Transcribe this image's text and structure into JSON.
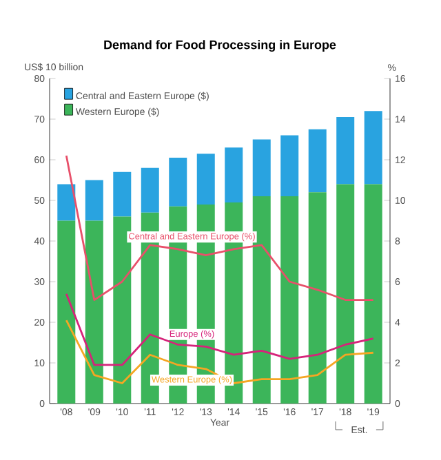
{
  "chart_data": {
    "type": "bar",
    "stacked": true,
    "title": "Demand for Food Processing in Europe",
    "ylabel": "US$ 10 billion",
    "y2label": "%",
    "xlabel": "Year",
    "categories": [
      "'08",
      "'09",
      "'10",
      "'11",
      "'12",
      "'13",
      "'14",
      "'15",
      "'16",
      "'17",
      "'18",
      "'19"
    ],
    "series": [
      {
        "name": "Western Europe ($)",
        "color": "#3cb55a",
        "values": [
          45,
          45,
          46,
          47,
          48.5,
          49,
          49.5,
          51,
          51,
          52,
          54,
          54
        ]
      },
      {
        "name": "Central and Eastern Europe ($)",
        "color": "#29a3e0",
        "values": [
          9,
          10,
          11,
          11,
          12,
          12.5,
          13.5,
          14,
          15,
          15.5,
          16.5,
          18
        ]
      },
      {
        "name": "Central and Eastern Europe (%)",
        "type": "line",
        "axis": "y2",
        "color": "#e8506a",
        "values": [
          12.2,
          5.1,
          6.0,
          7.8,
          7.6,
          7.3,
          7.6,
          7.8,
          6.0,
          5.6,
          5.1,
          5.1
        ]
      },
      {
        "name": "Europe (%)",
        "type": "line",
        "axis": "y2",
        "color": "#d6237a",
        "values": [
          5.4,
          1.9,
          1.9,
          3.4,
          2.9,
          2.8,
          2.4,
          2.6,
          2.2,
          2.4,
          2.9,
          3.2
        ]
      },
      {
        "name": "Western Europe (%)",
        "type": "line",
        "axis": "y2",
        "color": "#f5a623",
        "values": [
          4.1,
          1.4,
          1.0,
          2.4,
          1.9,
          1.7,
          1.0,
          1.2,
          1.2,
          1.4,
          2.4,
          2.5
        ]
      }
    ],
    "ylim": [
      0,
      80
    ],
    "yticks": [
      0,
      10,
      20,
      30,
      40,
      50,
      60,
      70,
      80
    ],
    "y2lim": [
      0,
      16
    ],
    "y2ticks": [
      0,
      2,
      4,
      6,
      8,
      10,
      12,
      14,
      16
    ],
    "legend": "top left",
    "annotations": [
      "Est."
    ]
  }
}
